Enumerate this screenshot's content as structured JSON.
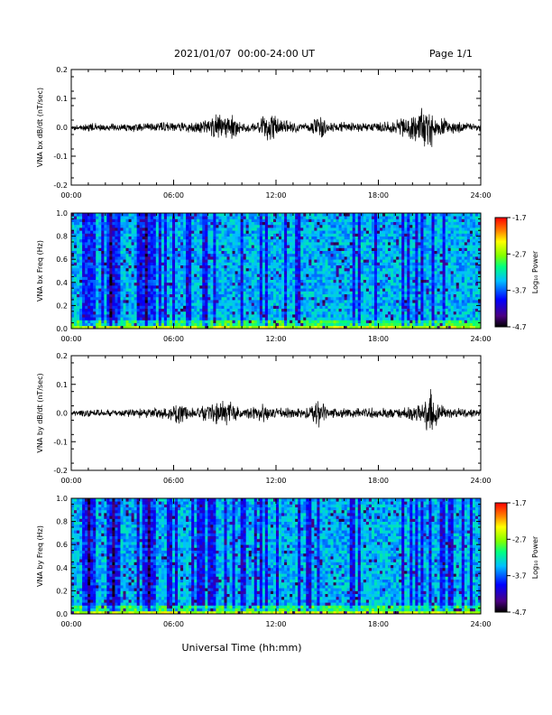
{
  "header": {
    "title": "2021/01/07  00:00-24:00 UT",
    "page": "Page 1/1"
  },
  "xaxis": {
    "label": "Universal Time (hh:mm)",
    "ticks": [
      "00:00",
      "06:00",
      "12:00",
      "18:00",
      "24:00"
    ],
    "range_hours": [
      0,
      24
    ]
  },
  "colorbar": {
    "label": "Log₁₀ Power",
    "ticks": [
      "-1.7",
      "-2.7",
      "-3.7",
      "-4.7"
    ],
    "range": [
      -4.7,
      -1.7
    ],
    "colors": [
      "#000000",
      "#4b0082",
      "#0000ff",
      "#00bfff",
      "#00ff80",
      "#80ff00",
      "#ffff00",
      "#ff8000",
      "#ff0000"
    ]
  },
  "chart_data": [
    {
      "type": "line",
      "ylabel": "VNA bx dB/dt (nT/sec)",
      "ylim": [
        -0.2,
        0.2
      ],
      "yticks": [
        "0.2",
        "0.1",
        "0.0",
        "-0.1",
        "-0.2"
      ],
      "series": [
        {
          "color": "#000000",
          "x": [
            0,
            1,
            2,
            3,
            4,
            5,
            6,
            7,
            8,
            8.5,
            9,
            9.5,
            10,
            11,
            11.5,
            12,
            13,
            14,
            14.5,
            15,
            16,
            17,
            18,
            19,
            19.5,
            20,
            20.5,
            21,
            21.5,
            22,
            23,
            24
          ],
          "y": [
            0.01,
            0.015,
            0.015,
            0.015,
            0.02,
            0.02,
            0.02,
            0.02,
            0.03,
            0.06,
            0.04,
            0.05,
            0.02,
            0.02,
            0.06,
            0.04,
            0.02,
            0.02,
            0.05,
            0.02,
            0.02,
            0.02,
            0.02,
            0.03,
            0.04,
            0.05,
            0.07,
            0.09,
            0.05,
            0.03,
            0.02,
            0.015
          ]
        }
      ]
    },
    {
      "type": "heatmap",
      "ylabel": "VNA bx Freq (Hz)",
      "ylim": [
        0.0,
        1.0
      ],
      "yticks": [
        "1.0",
        "0.8",
        "0.6",
        "0.4",
        "0.2",
        "0.0"
      ],
      "zlim": [
        -4.7,
        -1.7
      ]
    },
    {
      "type": "line",
      "ylabel": "VNA by dB/dt (nT/sec)",
      "ylim": [
        -0.2,
        0.2
      ],
      "yticks": [
        "0.2",
        "0.1",
        "0.0",
        "-0.1",
        "-0.2"
      ],
      "series": [
        {
          "color": "#000000",
          "x": [
            0,
            1,
            2,
            3,
            4,
            5,
            6,
            6.5,
            7,
            8,
            8.5,
            9,
            9.5,
            10,
            11,
            11.5,
            12,
            13,
            14,
            14.5,
            15,
            16,
            17,
            18,
            19,
            20,
            20.5,
            21,
            21.5,
            22,
            23,
            24
          ],
          "y": [
            0.01,
            0.015,
            0.015,
            0.015,
            0.02,
            0.02,
            0.03,
            0.05,
            0.02,
            0.03,
            0.05,
            0.05,
            0.04,
            0.02,
            0.03,
            0.05,
            0.02,
            0.02,
            0.03,
            0.06,
            0.02,
            0.02,
            0.02,
            0.02,
            0.02,
            0.03,
            0.04,
            0.1,
            0.04,
            0.02,
            0.02,
            0.015
          ]
        }
      ]
    },
    {
      "type": "heatmap",
      "ylabel": "VNA by Freq (Hz)",
      "ylim": [
        0.0,
        1.0
      ],
      "yticks": [
        "1.0",
        "0.8",
        "0.6",
        "0.4",
        "0.2",
        "0.0"
      ],
      "zlim": [
        -4.7,
        -1.7
      ]
    }
  ]
}
